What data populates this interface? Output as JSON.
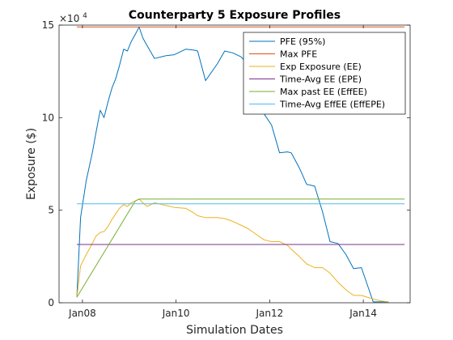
{
  "chart_data": {
    "type": "line",
    "title": "Counterparty 5 Exposure Profiles",
    "xlabel": "Simulation Dates",
    "ylabel": "Exposure ($)",
    "y_exponent_label": "×10",
    "y_exponent_power": "4",
    "y_scale": 10000,
    "xlim": [
      2007.5,
      2015.0
    ],
    "ylim": [
      0,
      15
    ],
    "x_ticks": [
      {
        "value": 2008,
        "label": "Jan08"
      },
      {
        "value": 2010,
        "label": "Jan10"
      },
      {
        "value": 2012,
        "label": "Jan12"
      },
      {
        "value": 2014,
        "label": "Jan14"
      }
    ],
    "y_ticks": [
      {
        "value": 0,
        "label": "0"
      },
      {
        "value": 5,
        "label": "5"
      },
      {
        "value": 10,
        "label": "10"
      },
      {
        "value": 15,
        "label": "15"
      }
    ],
    "grid": false,
    "legend_position": "top-right",
    "series": [
      {
        "name": "PFE (95%)",
        "color": "#0072bd",
        "x": [
          2007.88,
          2007.96,
          2008.08,
          2008.21,
          2008.29,
          2008.38,
          2008.46,
          2008.54,
          2008.63,
          2008.71,
          2008.79,
          2008.88,
          2008.96,
          2009.04,
          2009.13,
          2009.21,
          2009.29,
          2009.38,
          2009.54,
          2009.71,
          2009.79,
          2009.96,
          2010.21,
          2010.38,
          2010.46,
          2010.63,
          2010.88,
          2011.04,
          2011.21,
          2011.38,
          2011.54,
          2011.71,
          2011.88,
          2012.04,
          2012.21,
          2012.38,
          2012.46,
          2012.63,
          2012.79,
          2012.96,
          2013.13,
          2013.29,
          2013.46,
          2013.63,
          2013.79,
          2013.96,
          2014.21,
          2014.38,
          2014.54
        ],
        "values": [
          0.3,
          4.6,
          6.6,
          8.1,
          9.2,
          10.4,
          10.0,
          10.8,
          11.6,
          12.1,
          12.8,
          13.7,
          13.6,
          14.1,
          14.5,
          14.9,
          14.3,
          13.9,
          13.2,
          13.3,
          13.35,
          13.4,
          13.7,
          13.65,
          13.6,
          12.0,
          12.9,
          13.6,
          13.5,
          13.3,
          12.9,
          11.8,
          10.2,
          9.6,
          8.1,
          8.15,
          8.1,
          7.3,
          6.4,
          6.3,
          4.9,
          3.3,
          3.2,
          2.6,
          1.85,
          1.9,
          0.05,
          0.05,
          0.05
        ]
      },
      {
        "name": "Max PFE",
        "color": "#d95319",
        "x": [
          2007.88,
          2014.88
        ],
        "values": [
          14.9,
          14.9
        ]
      },
      {
        "name": "Exp Exposure (EE)",
        "color": "#edb120",
        "x": [
          2007.88,
          2007.96,
          2008.08,
          2008.21,
          2008.29,
          2008.38,
          2008.46,
          2008.54,
          2008.63,
          2008.71,
          2008.79,
          2008.88,
          2008.96,
          2009.04,
          2009.13,
          2009.21,
          2009.29,
          2009.38,
          2009.54,
          2009.71,
          2009.79,
          2009.96,
          2010.21,
          2010.38,
          2010.46,
          2010.63,
          2010.88,
          2011.04,
          2011.21,
          2011.38,
          2011.54,
          2011.71,
          2011.88,
          2012.04,
          2012.21,
          2012.38,
          2012.46,
          2012.63,
          2012.79,
          2012.96,
          2013.13,
          2013.29,
          2013.46,
          2013.63,
          2013.79,
          2013.96,
          2014.21,
          2014.38,
          2014.54
        ],
        "values": [
          0.3,
          2.0,
          2.6,
          3.2,
          3.6,
          3.8,
          3.85,
          4.1,
          4.5,
          4.8,
          5.1,
          5.3,
          5.2,
          5.4,
          5.5,
          5.6,
          5.4,
          5.2,
          5.4,
          5.3,
          5.25,
          5.15,
          5.1,
          4.85,
          4.7,
          4.6,
          4.6,
          4.55,
          4.4,
          4.2,
          4.0,
          3.7,
          3.4,
          3.3,
          3.3,
          3.1,
          2.9,
          2.5,
          2.1,
          1.9,
          1.9,
          1.6,
          1.1,
          0.7,
          0.4,
          0.4,
          0.2,
          0.1,
          0.05
        ]
      },
      {
        "name": "Time-Avg EE (EPE)",
        "color": "#7e2f8e",
        "x": [
          2007.88,
          2014.88
        ],
        "values": [
          3.15,
          3.15
        ]
      },
      {
        "name": "Max past EE (EffEE)",
        "color": "#77ac30",
        "x": [
          2007.88,
          2009.13,
          2009.21,
          2014.88
        ],
        "values": [
          0.3,
          5.5,
          5.6,
          5.6
        ]
      },
      {
        "name": "Time-Avg EffEE (EffEPE)",
        "color": "#4dbeee",
        "x": [
          2007.88,
          2014.88
        ],
        "values": [
          5.35,
          5.35
        ]
      }
    ]
  }
}
